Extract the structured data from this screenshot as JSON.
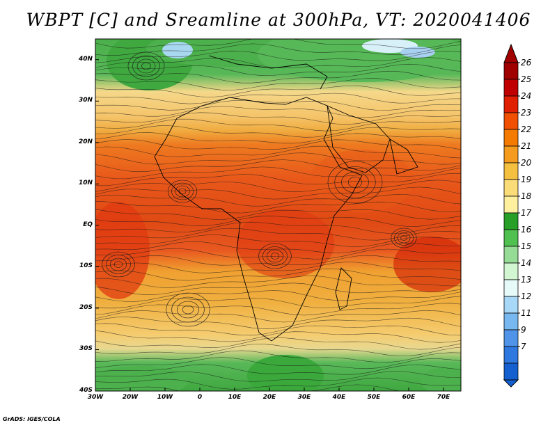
{
  "title": "WBPT [C] and Sreamline at 300hPa, VT: 2020041406",
  "credit": "GrADS: IGES/COLA",
  "map": {
    "lat_range": [
      -40,
      45
    ],
    "lon_range": [
      -30,
      75
    ],
    "lat_labels": [
      "40N",
      "30N",
      "20N",
      "10N",
      "EQ",
      "10S",
      "20S",
      "30S",
      "40S"
    ],
    "lon_labels": [
      "30W",
      "20W",
      "10W",
      "0",
      "10E",
      "20E",
      "30E",
      "40E",
      "50E",
      "60E",
      "70E"
    ]
  },
  "colorbar": {
    "labels": [
      "26",
      "25",
      "24",
      "23",
      "22",
      "21",
      "20",
      "19",
      "18",
      "17",
      "16",
      "15",
      "14",
      "13",
      "12",
      "11",
      "9",
      "7"
    ],
    "colors": [
      "#a00000",
      "#c00000",
      "#e02000",
      "#f05000",
      "#f57a00",
      "#f59c1e",
      "#f5c040",
      "#fadc78",
      "#fff0a0",
      "#28a028",
      "#50c050",
      "#96dc96",
      "#d2f5d2",
      "#e6fafa",
      "#a8d8f8",
      "#78b8f0",
      "#4f94e8",
      "#2f78e0",
      "#1460d0"
    ]
  }
}
